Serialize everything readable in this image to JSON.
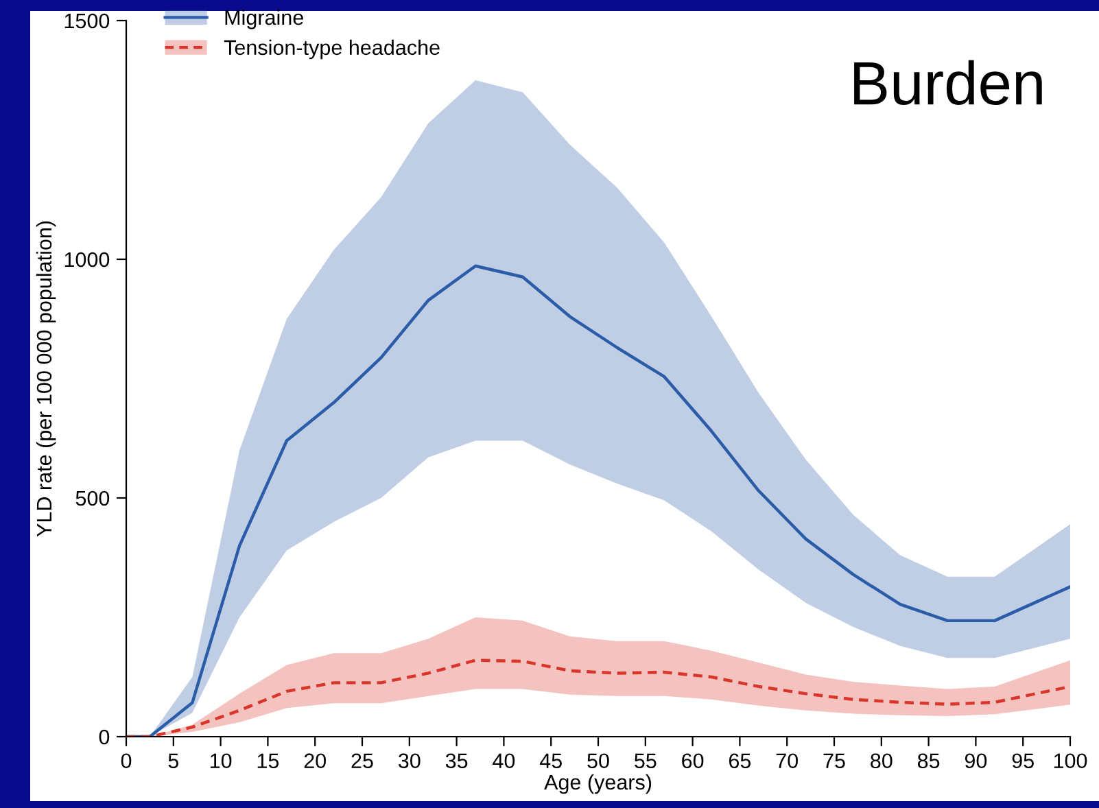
{
  "chart_data": {
    "type": "line",
    "title": "Burden",
    "xlabel": "Age (years)",
    "ylabel": "YLD rate (per 100 000 population)",
    "x": [
      0,
      2.5,
      7,
      12,
      17,
      22,
      27,
      32,
      37,
      42,
      47,
      52,
      57,
      62,
      67,
      72,
      77,
      82,
      87,
      92,
      100
    ],
    "series": [
      {
        "name": "Migraine",
        "color": "#2a5ca8",
        "line_style": "solid",
        "values": [
          0,
          0,
          71,
          400,
          620,
          700,
          794,
          914,
          986,
          963,
          880,
          815,
          754,
          640,
          515,
          414,
          340,
          277,
          243,
          243,
          314
        ],
        "lower": [
          0,
          0,
          50,
          250,
          390,
          450,
          500,
          585,
          620,
          620,
          570,
          530,
          495,
          430,
          350,
          280,
          230,
          190,
          165,
          165,
          205
        ],
        "upper": [
          0,
          0,
          125,
          600,
          875,
          1020,
          1130,
          1285,
          1375,
          1350,
          1240,
          1150,
          1035,
          880,
          720,
          580,
          465,
          380,
          335,
          335,
          445
        ]
      },
      {
        "name": "Tension-type headache",
        "color": "#d9352a",
        "line_style": "dashed",
        "values": [
          0,
          0,
          20,
          55,
          95,
          113,
          113,
          133,
          160,
          158,
          138,
          133,
          135,
          125,
          105,
          90,
          78,
          72,
          68,
          72,
          105
        ],
        "lower": [
          0,
          0,
          10,
          30,
          60,
          70,
          70,
          85,
          100,
          100,
          88,
          85,
          85,
          78,
          65,
          55,
          48,
          45,
          43,
          47,
          67
        ],
        "upper": [
          0,
          0,
          25,
          90,
          150,
          175,
          175,
          205,
          250,
          243,
          210,
          200,
          200,
          180,
          155,
          130,
          115,
          107,
          100,
          105,
          160
        ]
      }
    ],
    "xlim": [
      0,
      100
    ],
    "ylim": [
      0,
      1500
    ],
    "xticks": [
      0,
      5,
      10,
      15,
      20,
      25,
      30,
      35,
      40,
      45,
      50,
      55,
      60,
      65,
      70,
      75,
      80,
      85,
      90,
      95,
      100
    ],
    "yticks": [
      0,
      500,
      1000,
      1500
    ],
    "grid": false,
    "legend": "top left",
    "marker": "none"
  }
}
